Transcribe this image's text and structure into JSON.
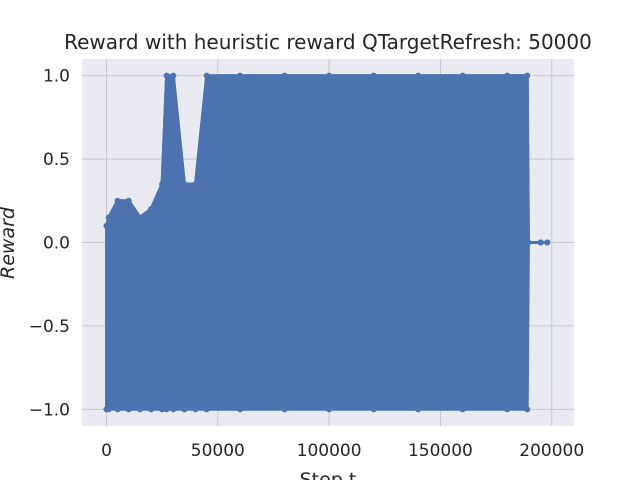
{
  "chart_data": {
    "type": "line",
    "title": "Reward with heuristic reward QTargetRefresh: 50000",
    "xlabel": "Step t",
    "ylabel": "Reward",
    "xlim": [
      -11000,
      210000
    ],
    "ylim": [
      -1.1,
      1.1
    ],
    "xticks": [
      0,
      50000,
      100000,
      150000,
      200000
    ],
    "xtick_labels": [
      "0",
      "50000",
      "100000",
      "150000",
      "200000"
    ],
    "yticks": [
      -1.0,
      -0.5,
      0.0,
      0.5,
      1.0
    ],
    "ytick_labels": [
      "−1.0",
      "−0.5",
      "0.0",
      "0.5",
      "1.0"
    ],
    "grid": true,
    "colors": {
      "series": "#4c72b0",
      "axes_bg": "#eaeaf2",
      "grid": "#ffffff",
      "text": "#262626"
    },
    "series": [
      {
        "x": [
          0,
          1000,
          5000,
          10000,
          15000,
          20000,
          25000,
          27000,
          30000,
          35000,
          40000,
          45000,
          60000,
          80000,
          100000,
          120000,
          140000,
          160000,
          180000,
          189000,
          189500,
          195000,
          198000
        ],
        "y_low": [
          -1.0,
          -1.0,
          -1.0,
          -1.0,
          -1.0,
          -1.0,
          -1.0,
          -1.0,
          -1.0,
          -1.0,
          -1.0,
          -1.0,
          -1.0,
          -1.0,
          -1.0,
          -1.0,
          -1.0,
          -1.0,
          -1.0,
          -1.0,
          0.0,
          0.0,
          0.0
        ],
        "y_high": [
          0.1,
          0.15,
          0.25,
          0.25,
          0.15,
          0.2,
          0.35,
          1.0,
          1.0,
          0.35,
          0.35,
          1.0,
          1.0,
          1.0,
          1.0,
          1.0,
          1.0,
          1.0,
          1.0,
          1.0,
          0.0,
          0.0,
          0.0
        ]
      }
    ]
  }
}
